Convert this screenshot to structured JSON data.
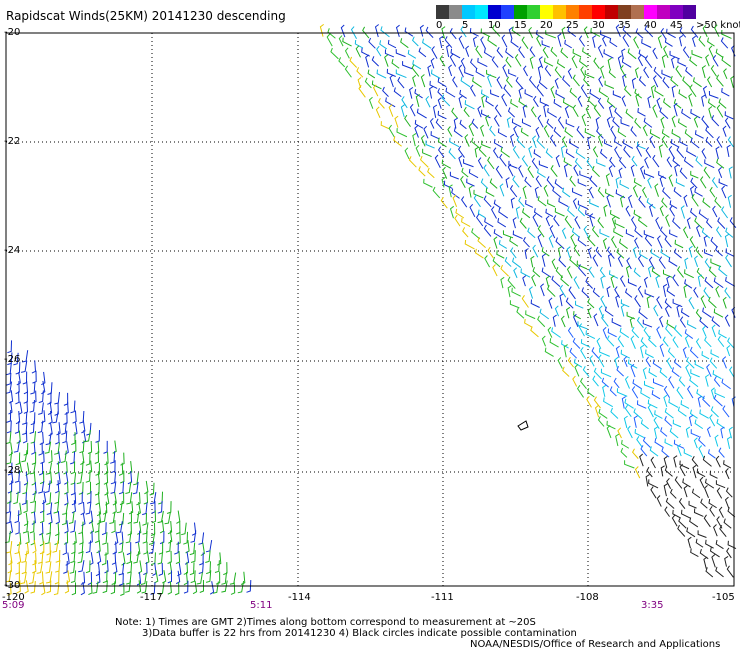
{
  "title": "Rapidscat Winds(25KM) 20141230 descending",
  "colorbar": {
    "colors": [
      "#3a3a3a",
      "#8a8a8a",
      "#00c8ff",
      "#00e8ff",
      "#0000d0",
      "#2040ff",
      "#00a000",
      "#30d030",
      "#ffff00",
      "#ffc000",
      "#ff8000",
      "#ff4000",
      "#ff0000",
      "#c00000",
      "#804020",
      "#b07050",
      "#ff00ff",
      "#c000c0",
      "#8000c0",
      "#5000a0"
    ],
    "ticks": [
      "0",
      "5",
      "10",
      "15",
      "20",
      "25",
      "30",
      "35",
      "40",
      "45",
      ">50 knots"
    ]
  },
  "axes": {
    "lat_labels": [
      "-20",
      "-22",
      "-24",
      "-26",
      "-28",
      "-30"
    ],
    "lon_labels": [
      "-120",
      "-117",
      "-114",
      "-111",
      "-108",
      "-105"
    ],
    "time_labels": [
      "5:09",
      "5:11",
      "3:35"
    ]
  },
  "notes": {
    "line1": "Note: 1) Times are GMT 2)Times along bottom correspond to measurement at ~20S",
    "line2": "3)Data buffer is 22 hrs from 20141230 4) Black circles indicate possible contamination",
    "line3": "NOAA/NESDIS/Office of Research and Applications"
  }
}
